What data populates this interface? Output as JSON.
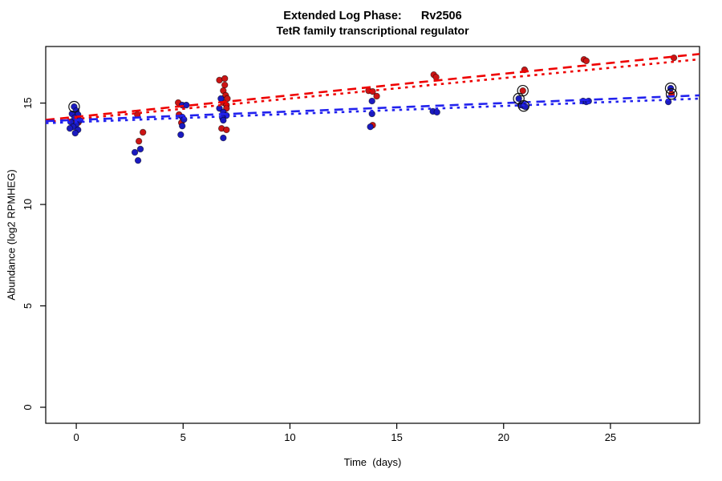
{
  "title": {
    "line1": "Extended Log Phase:      Rv2506",
    "line2": "TetR family transcriptional regulator"
  },
  "chart_data": {
    "type": "scatter",
    "title": "Extended Log Phase:      Rv2506",
    "subtitle": "TetR family transcriptional regulator",
    "xlabel": "Time  (days)",
    "ylabel": "Abundance  (log2 RPMHEG)",
    "xlim": [
      -1.43,
      29.17
    ],
    "ylim": [
      -0.79,
      17.79
    ],
    "x_ticks": [
      0,
      5,
      10,
      15,
      20,
      25
    ],
    "y_ticks": [
      0,
      5,
      10,
      15
    ],
    "grid": "off",
    "legend": "none",
    "colors": {
      "red_points": "#cc1414",
      "blue_points": "#1a1ac0",
      "red_line": "#ee0000",
      "blue_line": "#2222ee",
      "highlight_ring": "#111111"
    },
    "series": [
      {
        "name": "red-condition",
        "color": "#cc1414",
        "points": [
          [
            -0.05,
            14.2
          ],
          [
            0.1,
            14.05
          ],
          [
            2.86,
            14.43
          ],
          [
            3.12,
            13.56
          ],
          [
            2.93,
            13.12
          ],
          [
            4.77,
            15.02
          ],
          [
            4.81,
            14.43
          ],
          [
            4.92,
            14.03
          ],
          [
            6.7,
            16.13
          ],
          [
            6.95,
            16.21
          ],
          [
            6.95,
            15.89
          ],
          [
            6.88,
            15.61
          ],
          [
            6.99,
            15.38
          ],
          [
            7.07,
            15.22
          ],
          [
            6.88,
            15.02
          ],
          [
            7.03,
            14.9
          ],
          [
            7.03,
            14.74
          ],
          [
            6.8,
            13.75
          ],
          [
            7.03,
            13.68
          ],
          [
            13.68,
            15.61
          ],
          [
            13.87,
            15.57
          ],
          [
            14.06,
            15.34
          ],
          [
            13.87,
            13.91
          ],
          [
            16.73,
            16.4
          ],
          [
            16.84,
            16.28
          ],
          [
            20.98,
            16.64
          ],
          [
            20.9,
            15.61
          ],
          [
            23.76,
            17.15
          ],
          [
            23.87,
            17.08
          ],
          [
            27.97,
            17.23
          ],
          [
            27.86,
            15.45
          ]
        ]
      },
      {
        "name": "blue-condition",
        "color": "#1a1ac0",
        "points": [
          [
            -0.1,
            14.82
          ],
          [
            0.0,
            14.62
          ],
          [
            -0.2,
            14.47
          ],
          [
            0.08,
            14.43
          ],
          [
            -0.08,
            14.27
          ],
          [
            0.15,
            14.15
          ],
          [
            -0.26,
            14.07
          ],
          [
            0.0,
            13.95
          ],
          [
            -0.15,
            13.83
          ],
          [
            -0.3,
            13.75
          ],
          [
            0.08,
            13.68
          ],
          [
            -0.05,
            13.52
          ],
          [
            3.0,
            12.73
          ],
          [
            2.74,
            12.57
          ],
          [
            2.89,
            12.17
          ],
          [
            4.96,
            14.9
          ],
          [
            5.15,
            14.9
          ],
          [
            4.96,
            14.31
          ],
          [
            5.04,
            14.19
          ],
          [
            4.96,
            13.87
          ],
          [
            4.89,
            13.44
          ],
          [
            6.77,
            15.22
          ],
          [
            6.7,
            14.74
          ],
          [
            6.88,
            14.55
          ],
          [
            7.03,
            14.39
          ],
          [
            6.84,
            14.27
          ],
          [
            6.88,
            14.15
          ],
          [
            6.88,
            13.28
          ],
          [
            13.84,
            15.1
          ],
          [
            13.84,
            14.47
          ],
          [
            13.76,
            13.83
          ],
          [
            16.69,
            14.59
          ],
          [
            16.88,
            14.55
          ],
          [
            20.71,
            15.22
          ],
          [
            20.79,
            14.9
          ],
          [
            20.94,
            14.86
          ],
          [
            21.02,
            14.82
          ],
          [
            23.72,
            15.1
          ],
          [
            23.87,
            15.06
          ],
          [
            23.98,
            15.1
          ],
          [
            27.82,
            15.73
          ],
          [
            27.71,
            15.06
          ]
        ]
      }
    ],
    "highlighted_points": [
      [
        -0.1,
        14.82
      ],
      [
        20.9,
        15.61
      ],
      [
        20.71,
        15.22
      ],
      [
        20.94,
        14.86
      ],
      [
        27.82,
        15.73
      ],
      [
        27.86,
        15.45
      ]
    ],
    "trend_lines": [
      {
        "name": "red-dashed",
        "color": "#ee0000",
        "style": "longdash",
        "x": [
          -1.43,
          29.17
        ],
        "y": [
          14.17,
          17.42
        ]
      },
      {
        "name": "red-dotted",
        "color": "#ee0000",
        "style": "dotted",
        "x": [
          -1.43,
          29.17
        ],
        "y": [
          14.07,
          17.16
        ]
      },
      {
        "name": "blue-dashed",
        "color": "#2222ee",
        "style": "longdash",
        "x": [
          -1.43,
          29.17
        ],
        "y": [
          14.11,
          15.38
        ]
      },
      {
        "name": "blue-dotted",
        "color": "#2222ee",
        "style": "dotted",
        "x": [
          -1.43,
          29.17
        ],
        "y": [
          14.01,
          15.22
        ]
      }
    ]
  }
}
